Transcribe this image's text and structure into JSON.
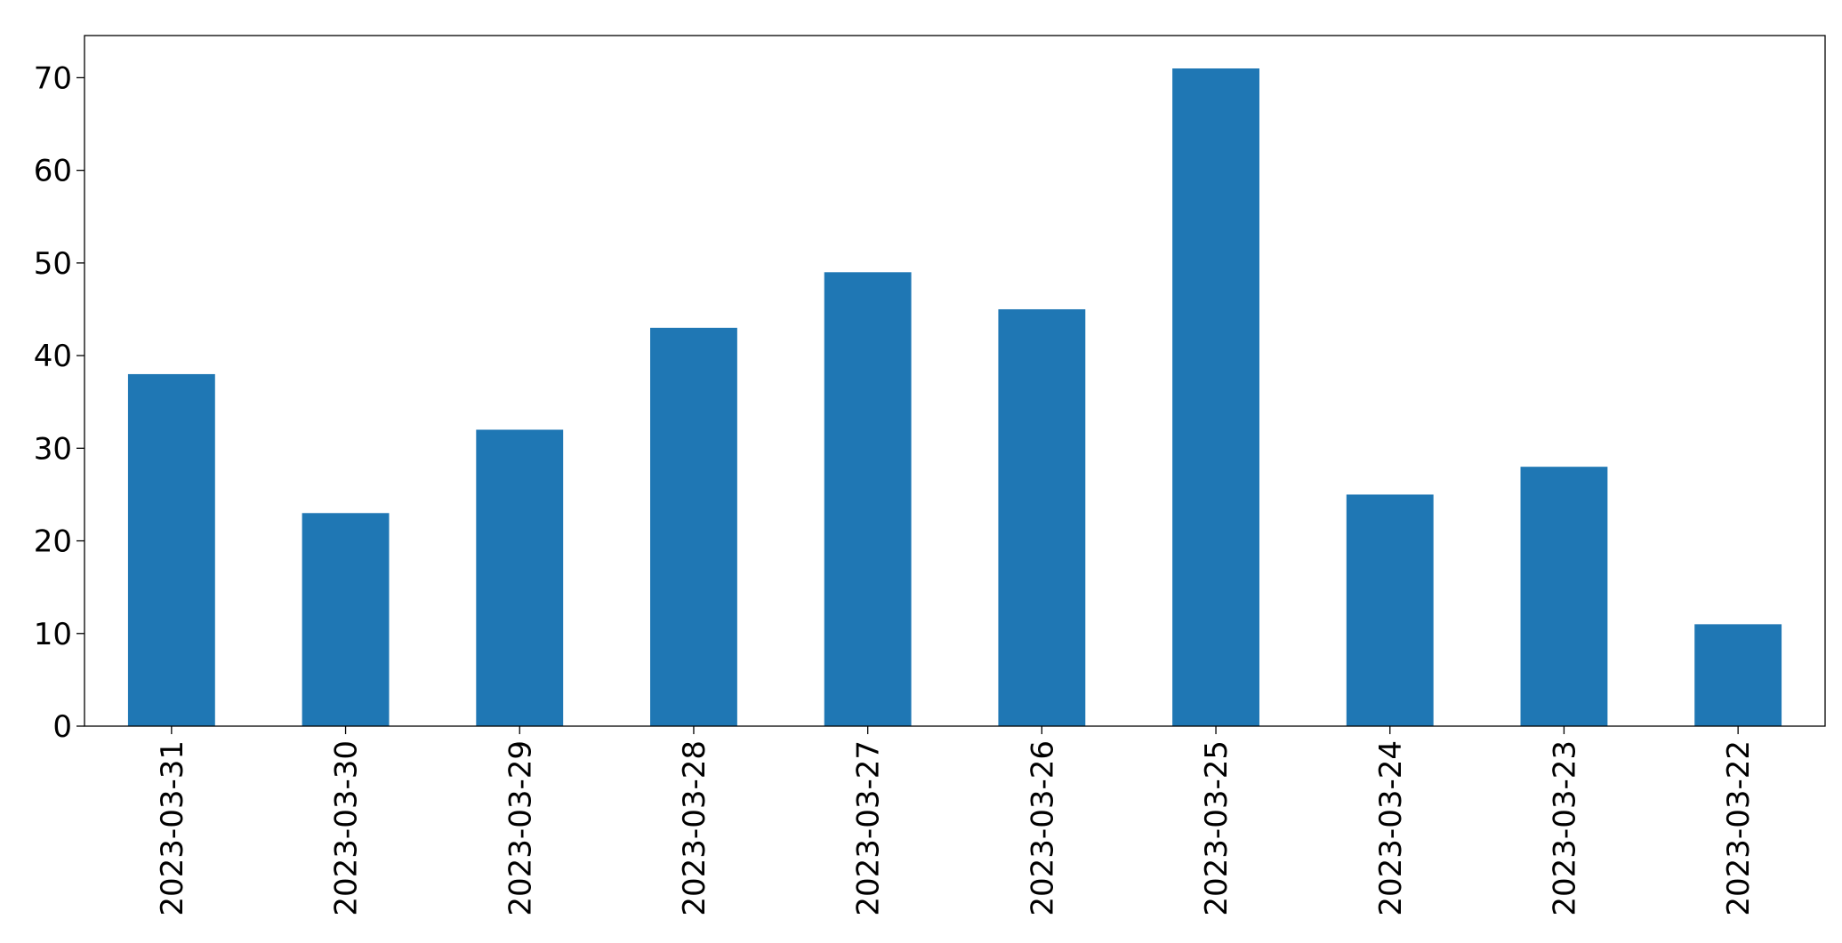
{
  "chart_data": {
    "type": "bar",
    "categories": [
      "2023-03-31",
      "2023-03-30",
      "2023-03-29",
      "2023-03-28",
      "2023-03-27",
      "2023-03-26",
      "2023-03-25",
      "2023-03-24",
      "2023-03-23",
      "2023-03-22"
    ],
    "values": [
      38,
      23,
      32,
      43,
      49,
      45,
      71,
      25,
      28,
      11
    ],
    "color": "#1f77b4",
    "ylim": [
      0,
      74.55
    ],
    "yticks": [
      0,
      10,
      20,
      30,
      40,
      50,
      60,
      70
    ],
    "grid": false
  }
}
